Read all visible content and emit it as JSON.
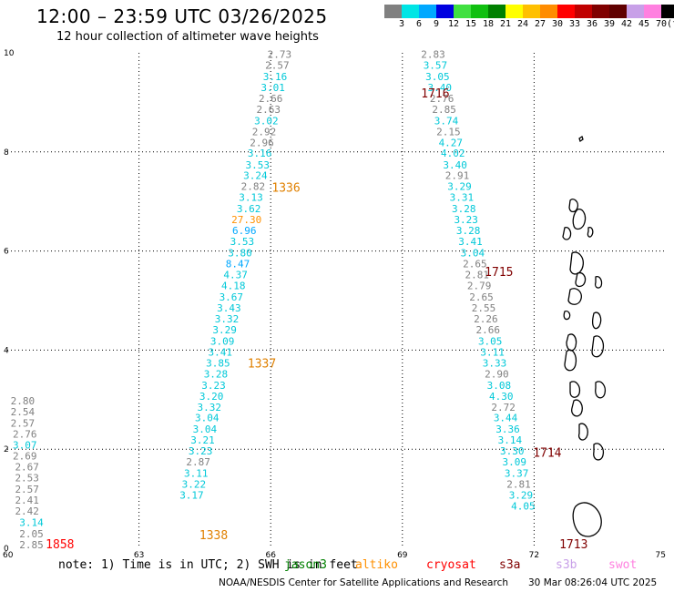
{
  "header": {
    "title": "12:00 – 23:59 UTC 03/26/2025",
    "subtitle": "12 hour collection of altimeter wave heights"
  },
  "color_scale": {
    "unit": "(ft)",
    "bins": [
      {
        "label": "3",
        "color": "#808080"
      },
      {
        "label": "6",
        "color": "#00e5e5"
      },
      {
        "label": "9",
        "color": "#00a8ff"
      },
      {
        "label": "12",
        "color": "#0000e0"
      },
      {
        "label": "15",
        "color": "#40e040"
      },
      {
        "label": "18",
        "color": "#10c010"
      },
      {
        "label": "21",
        "color": "#008000"
      },
      {
        "label": "24",
        "color": "#ffff00"
      },
      {
        "label": "27",
        "color": "#ffc000"
      },
      {
        "label": "30",
        "color": "#ff8c00"
      },
      {
        "label": "33",
        "color": "#ff0000"
      },
      {
        "label": "36",
        "color": "#c00000"
      },
      {
        "label": "39",
        "color": "#800000"
      },
      {
        "label": "42",
        "color": "#600000"
      },
      {
        "label": "45",
        "color": "#c8a0e8"
      },
      {
        "label": "70",
        "color": "#ff80e0"
      },
      {
        "label": "",
        "color": "#000000"
      }
    ]
  },
  "chart_data": {
    "type": "scatter",
    "xlim": [
      60,
      75
    ],
    "ylim": [
      0,
      10
    ],
    "x_ticks": [
      "60",
      "63",
      "66",
      "69",
      "72",
      "75"
    ],
    "y_ticks": [
      "0",
      "2",
      "4",
      "6",
      "8",
      "10"
    ],
    "grid": true,
    "track_labels": [
      {
        "text": "1716",
        "x": 69.75,
        "y": 9.1,
        "color": "#800000"
      },
      {
        "text": "1336",
        "x": 66.35,
        "y": 7.2,
        "color": "#e08000"
      },
      {
        "text": "1715",
        "x": 71.2,
        "y": 5.5,
        "color": "#800000"
      },
      {
        "text": "1337",
        "x": 65.8,
        "y": 3.65,
        "color": "#e08000"
      },
      {
        "text": "1714",
        "x": 72.3,
        "y": 1.85,
        "color": "#800000"
      },
      {
        "text": "1338",
        "x": 64.7,
        "y": 0.18,
        "color": "#e08000"
      },
      {
        "text": "1858",
        "x": 61.2,
        "y": 0.0,
        "color": "#ff0000"
      },
      {
        "text": "1713",
        "x": 72.9,
        "y": 0.0,
        "color": "#800000"
      }
    ],
    "series": [
      {
        "points": [
          {
            "x": 60.55,
            "y": 0.0,
            "v": "2.85",
            "c": "#808080"
          },
          {
            "x": 60.55,
            "y": 0.22,
            "v": "2.05",
            "c": "#808080"
          },
          {
            "x": 60.55,
            "y": 0.45,
            "v": "3.14",
            "c": "#00c8d8"
          },
          {
            "x": 60.45,
            "y": 0.68,
            "v": "2.42",
            "c": "#808080"
          },
          {
            "x": 60.45,
            "y": 0.9,
            "v": "2.41",
            "c": "#808080"
          },
          {
            "x": 60.45,
            "y": 1.12,
            "v": "2.57",
            "c": "#808080"
          },
          {
            "x": 60.45,
            "y": 1.35,
            "v": "2.53",
            "c": "#808080"
          },
          {
            "x": 60.45,
            "y": 1.57,
            "v": "2.67",
            "c": "#808080"
          },
          {
            "x": 60.4,
            "y": 1.79,
            "v": "2.69",
            "c": "#808080"
          },
          {
            "x": 60.4,
            "y": 2.01,
            "v": "3.07",
            "c": "#00c8d8"
          },
          {
            "x": 60.4,
            "y": 2.23,
            "v": "2.76",
            "c": "#808080"
          },
          {
            "x": 60.35,
            "y": 2.45,
            "v": "2.57",
            "c": "#808080"
          },
          {
            "x": 60.35,
            "y": 2.68,
            "v": "2.54",
            "c": "#808080"
          },
          {
            "x": 60.35,
            "y": 2.9,
            "v": "2.80",
            "c": "#808080"
          }
        ]
      },
      {
        "points": [
          {
            "x": 66.2,
            "y": 9.9,
            "v": "2.73",
            "c": "#808080"
          },
          {
            "x": 66.15,
            "y": 9.68,
            "v": "2.57",
            "c": "#808080"
          },
          {
            "x": 66.1,
            "y": 9.45,
            "v": "3.16",
            "c": "#00c8d8"
          },
          {
            "x": 66.05,
            "y": 9.23,
            "v": "3.01",
            "c": "#00c8d8"
          },
          {
            "x": 66.0,
            "y": 9.01,
            "v": "2.66",
            "c": "#808080"
          },
          {
            "x": 65.95,
            "y": 8.79,
            "v": "2.63",
            "c": "#808080"
          },
          {
            "x": 65.9,
            "y": 8.56,
            "v": "3.02",
            "c": "#00c8d8"
          },
          {
            "x": 65.85,
            "y": 8.34,
            "v": "2.92",
            "c": "#808080"
          },
          {
            "x": 65.8,
            "y": 8.12,
            "v": "2.96",
            "c": "#808080"
          },
          {
            "x": 65.75,
            "y": 7.9,
            "v": "3.16",
            "c": "#00c8d8"
          },
          {
            "x": 65.7,
            "y": 7.67,
            "v": "3.53",
            "c": "#00c8d8"
          },
          {
            "x": 65.65,
            "y": 7.45,
            "v": "3.24",
            "c": "#00c8d8"
          },
          {
            "x": 65.6,
            "y": 7.23,
            "v": "2.82",
            "c": "#808080"
          },
          {
            "x": 65.55,
            "y": 7.01,
            "v": "3.13",
            "c": "#00c8d8"
          },
          {
            "x": 65.5,
            "y": 6.78,
            "v": "3.62",
            "c": "#00c8d8"
          },
          {
            "x": 65.45,
            "y": 6.56,
            "v": "27.30",
            "c": "#ff9000"
          },
          {
            "x": 65.4,
            "y": 6.34,
            "v": "6.96",
            "c": "#00a8ff"
          },
          {
            "x": 65.35,
            "y": 6.12,
            "v": "3.53",
            "c": "#00c8d8"
          },
          {
            "x": 65.3,
            "y": 5.89,
            "v": "3.80",
            "c": "#00c8d8"
          },
          {
            "x": 65.25,
            "y": 5.67,
            "v": "8.47",
            "c": "#00a8ff"
          },
          {
            "x": 65.2,
            "y": 5.45,
            "v": "4.37",
            "c": "#00c8d8"
          },
          {
            "x": 65.15,
            "y": 5.23,
            "v": "4.18",
            "c": "#00c8d8"
          },
          {
            "x": 65.1,
            "y": 5.0,
            "v": "3.67",
            "c": "#00c8d8"
          },
          {
            "x": 65.05,
            "y": 4.78,
            "v": "3.43",
            "c": "#00c8d8"
          },
          {
            "x": 65.0,
            "y": 4.56,
            "v": "3.32",
            "c": "#00c8d8"
          },
          {
            "x": 64.95,
            "y": 4.34,
            "v": "3.29",
            "c": "#00c8d8"
          },
          {
            "x": 64.9,
            "y": 4.11,
            "v": "3.09",
            "c": "#00c8d8"
          },
          {
            "x": 64.85,
            "y": 3.89,
            "v": "3.41",
            "c": "#00c8d8"
          },
          {
            "x": 64.8,
            "y": 3.67,
            "v": "3.85",
            "c": "#00c8d8"
          },
          {
            "x": 64.75,
            "y": 3.45,
            "v": "3.28",
            "c": "#00c8d8"
          },
          {
            "x": 64.7,
            "y": 3.22,
            "v": "3.23",
            "c": "#00c8d8"
          },
          {
            "x": 64.65,
            "y": 3.0,
            "v": "3.20",
            "c": "#00c8d8"
          },
          {
            "x": 64.6,
            "y": 2.78,
            "v": "3.32",
            "c": "#00c8d8"
          },
          {
            "x": 64.55,
            "y": 2.56,
            "v": "3.04",
            "c": "#00c8d8"
          },
          {
            "x": 64.5,
            "y": 2.33,
            "v": "3.04",
            "c": "#00c8d8"
          },
          {
            "x": 64.45,
            "y": 2.11,
            "v": "3.21",
            "c": "#00c8d8"
          },
          {
            "x": 64.4,
            "y": 1.89,
            "v": "3.23",
            "c": "#00c8d8"
          },
          {
            "x": 64.35,
            "y": 1.67,
            "v": "2.87",
            "c": "#808080"
          },
          {
            "x": 64.3,
            "y": 1.44,
            "v": "3.11",
            "c": "#00c8d8"
          },
          {
            "x": 64.25,
            "y": 1.22,
            "v": "3.22",
            "c": "#00c8d8"
          },
          {
            "x": 64.2,
            "y": 1.0,
            "v": "3.17",
            "c": "#00c8d8"
          }
        ]
      },
      {
        "points": [
          {
            "x": 69.7,
            "y": 9.9,
            "v": "2.83",
            "c": "#808080"
          },
          {
            "x": 69.75,
            "y": 9.68,
            "v": "3.57",
            "c": "#00c8d8"
          },
          {
            "x": 69.8,
            "y": 9.45,
            "v": "3.05",
            "c": "#00c8d8"
          },
          {
            "x": 69.85,
            "y": 9.23,
            "v": "3.40",
            "c": "#00c8d8"
          },
          {
            "x": 69.9,
            "y": 9.01,
            "v": "2.76",
            "c": "#808080"
          },
          {
            "x": 69.95,
            "y": 8.79,
            "v": "2.85",
            "c": "#808080"
          },
          {
            "x": 70.0,
            "y": 8.56,
            "v": "3.74",
            "c": "#00c8d8"
          },
          {
            "x": 70.05,
            "y": 8.34,
            "v": "2.15",
            "c": "#808080"
          },
          {
            "x": 70.1,
            "y": 8.12,
            "v": "4.27",
            "c": "#00c8d8"
          },
          {
            "x": 70.15,
            "y": 7.9,
            "v": "4.02",
            "c": "#00c8d8"
          },
          {
            "x": 70.2,
            "y": 7.67,
            "v": "3.40",
            "c": "#00c8d8"
          },
          {
            "x": 70.25,
            "y": 7.45,
            "v": "2.91",
            "c": "#808080"
          },
          {
            "x": 70.3,
            "y": 7.23,
            "v": "3.29",
            "c": "#00c8d8"
          },
          {
            "x": 70.35,
            "y": 7.01,
            "v": "3.31",
            "c": "#00c8d8"
          },
          {
            "x": 70.4,
            "y": 6.78,
            "v": "3.28",
            "c": "#00c8d8"
          },
          {
            "x": 70.45,
            "y": 6.56,
            "v": "3.23",
            "c": "#00c8d8"
          },
          {
            "x": 70.5,
            "y": 6.34,
            "v": "3.28",
            "c": "#00c8d8"
          },
          {
            "x": 70.55,
            "y": 6.12,
            "v": "3.41",
            "c": "#00c8d8"
          },
          {
            "x": 70.6,
            "y": 5.89,
            "v": "3.04",
            "c": "#00c8d8"
          },
          {
            "x": 70.65,
            "y": 5.67,
            "v": "2.65",
            "c": "#808080"
          },
          {
            "x": 70.7,
            "y": 5.45,
            "v": "2.81",
            "c": "#808080"
          },
          {
            "x": 70.75,
            "y": 5.23,
            "v": "2.79",
            "c": "#808080"
          },
          {
            "x": 70.8,
            "y": 5.0,
            "v": "2.65",
            "c": "#808080"
          },
          {
            "x": 70.85,
            "y": 4.78,
            "v": "2.55",
            "c": "#808080"
          },
          {
            "x": 70.9,
            "y": 4.56,
            "v": "2.26",
            "c": "#808080"
          },
          {
            "x": 70.95,
            "y": 4.34,
            "v": "2.66",
            "c": "#808080"
          },
          {
            "x": 71.0,
            "y": 4.11,
            "v": "3.05",
            "c": "#00c8d8"
          },
          {
            "x": 71.05,
            "y": 3.89,
            "v": "3.11",
            "c": "#00c8d8"
          },
          {
            "x": 71.1,
            "y": 3.67,
            "v": "3.33",
            "c": "#00c8d8"
          },
          {
            "x": 71.15,
            "y": 3.45,
            "v": "2.90",
            "c": "#808080"
          },
          {
            "x": 71.2,
            "y": 3.22,
            "v": "3.08",
            "c": "#00c8d8"
          },
          {
            "x": 71.25,
            "y": 3.0,
            "v": "4.30",
            "c": "#00c8d8"
          },
          {
            "x": 71.3,
            "y": 2.78,
            "v": "2.72",
            "c": "#808080"
          },
          {
            "x": 71.35,
            "y": 2.56,
            "v": "3.44",
            "c": "#00c8d8"
          },
          {
            "x": 71.4,
            "y": 2.33,
            "v": "3.36",
            "c": "#00c8d8"
          },
          {
            "x": 71.45,
            "y": 2.11,
            "v": "3.14",
            "c": "#00c8d8"
          },
          {
            "x": 71.5,
            "y": 1.89,
            "v": "3.30",
            "c": "#00c8d8"
          },
          {
            "x": 71.55,
            "y": 1.67,
            "v": "3.09",
            "c": "#00c8d8"
          },
          {
            "x": 71.6,
            "y": 1.44,
            "v": "3.37",
            "c": "#00c8d8"
          },
          {
            "x": 71.65,
            "y": 1.22,
            "v": "2.81",
            "c": "#808080"
          },
          {
            "x": 71.7,
            "y": 1.0,
            "v": "3.29",
            "c": "#00c8d8"
          },
          {
            "x": 71.75,
            "y": 0.78,
            "v": "4.05",
            "c": "#00c8d8"
          }
        ]
      }
    ]
  },
  "footer": {
    "note": "note: 1) Time is in UTC; 2) SWH is in feet",
    "satellites": [
      {
        "label": "jason3",
        "color": "#008000"
      },
      {
        "label": "altiko",
        "color": "#ff9000"
      },
      {
        "label": "cryosat",
        "color": "#ff0000"
      },
      {
        "label": "s3a",
        "color": "#800000"
      },
      {
        "label": "s3b",
        "color": "#c8a0e8"
      },
      {
        "label": "swot",
        "color": "#ff80e0"
      }
    ],
    "credit": "NOAA/NESDIS Center for Satellite Applications and Research",
    "timestamp": "30 Mar 08:26:04 UTC 2025"
  }
}
